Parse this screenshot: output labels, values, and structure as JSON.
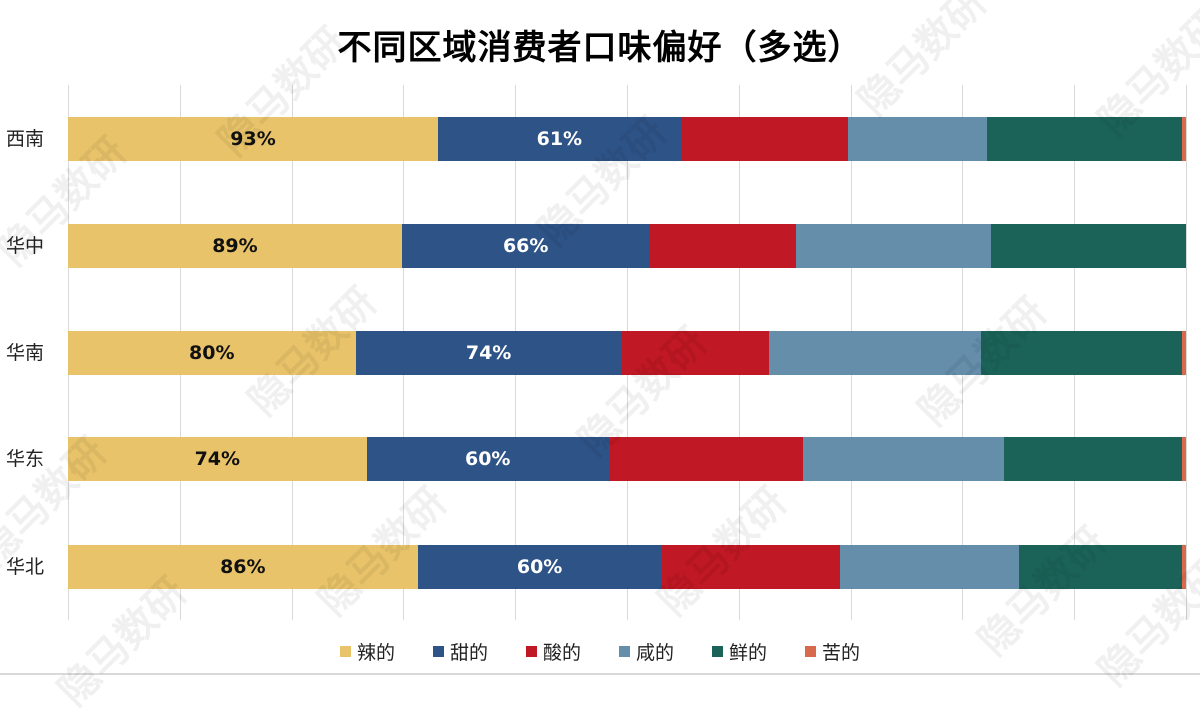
{
  "title": "不同区域消费者口味偏好（多选）",
  "watermark": "隐马数研",
  "legend": [
    {
      "label": "辣的",
      "color": "#E8C36A"
    },
    {
      "label": "甜的",
      "color": "#2E5387"
    },
    {
      "label": "酸的",
      "color": "#C01824"
    },
    {
      "label": "咸的",
      "color": "#648EAA"
    },
    {
      "label": "鲜的",
      "color": "#1B6359"
    },
    {
      "label": "苦的",
      "color": "#D9694C"
    }
  ],
  "rows": [
    {
      "label": "西南",
      "labels": [
        "93%",
        "61%",
        "",
        "",
        "",
        ""
      ]
    },
    {
      "label": "华中",
      "labels": [
        "89%",
        "66%",
        "",
        "",
        "",
        ""
      ]
    },
    {
      "label": "华南",
      "labels": [
        "80%",
        "74%",
        "",
        "",
        "",
        ""
      ]
    },
    {
      "label": "华东",
      "labels": [
        "74%",
        "60%",
        "",
        "",
        "",
        ""
      ]
    },
    {
      "label": "华北",
      "labels": [
        "86%",
        "60%",
        "",
        "",
        "",
        ""
      ]
    }
  ],
  "chart_data": {
    "type": "bar",
    "orientation": "horizontal",
    "stacking": "percent",
    "title": "不同区域消费者口味偏好（多选）",
    "xlabel": "",
    "ylabel": "",
    "categories": [
      "西南",
      "华中",
      "华南",
      "华东",
      "华北"
    ],
    "series": [
      {
        "name": "辣的",
        "color": "#E8C36A",
        "values": [
          93,
          89,
          80,
          74,
          86
        ]
      },
      {
        "name": "甜的",
        "color": "#2E5387",
        "values": [
          61,
          66,
          74,
          60,
          60
        ]
      },
      {
        "name": "酸的",
        "color": "#C01824",
        "values": [
          42,
          39,
          41,
          48,
          44
        ]
      },
      {
        "name": "咸的",
        "color": "#648EAA",
        "values": [
          35,
          52,
          59,
          50,
          44
        ]
      },
      {
        "name": "鲜的",
        "color": "#1B6359",
        "values": [
          49,
          52,
          56,
          44,
          40
        ]
      },
      {
        "name": "苦的",
        "color": "#D9694C",
        "values": [
          1,
          0,
          1,
          1,
          1
        ]
      }
    ],
    "data_labels_shown_for": [
      "辣的",
      "甜的"
    ],
    "xlim": [
      0,
      100
    ],
    "grid": true,
    "gridlines_count": 10,
    "legend_position": "bottom"
  }
}
